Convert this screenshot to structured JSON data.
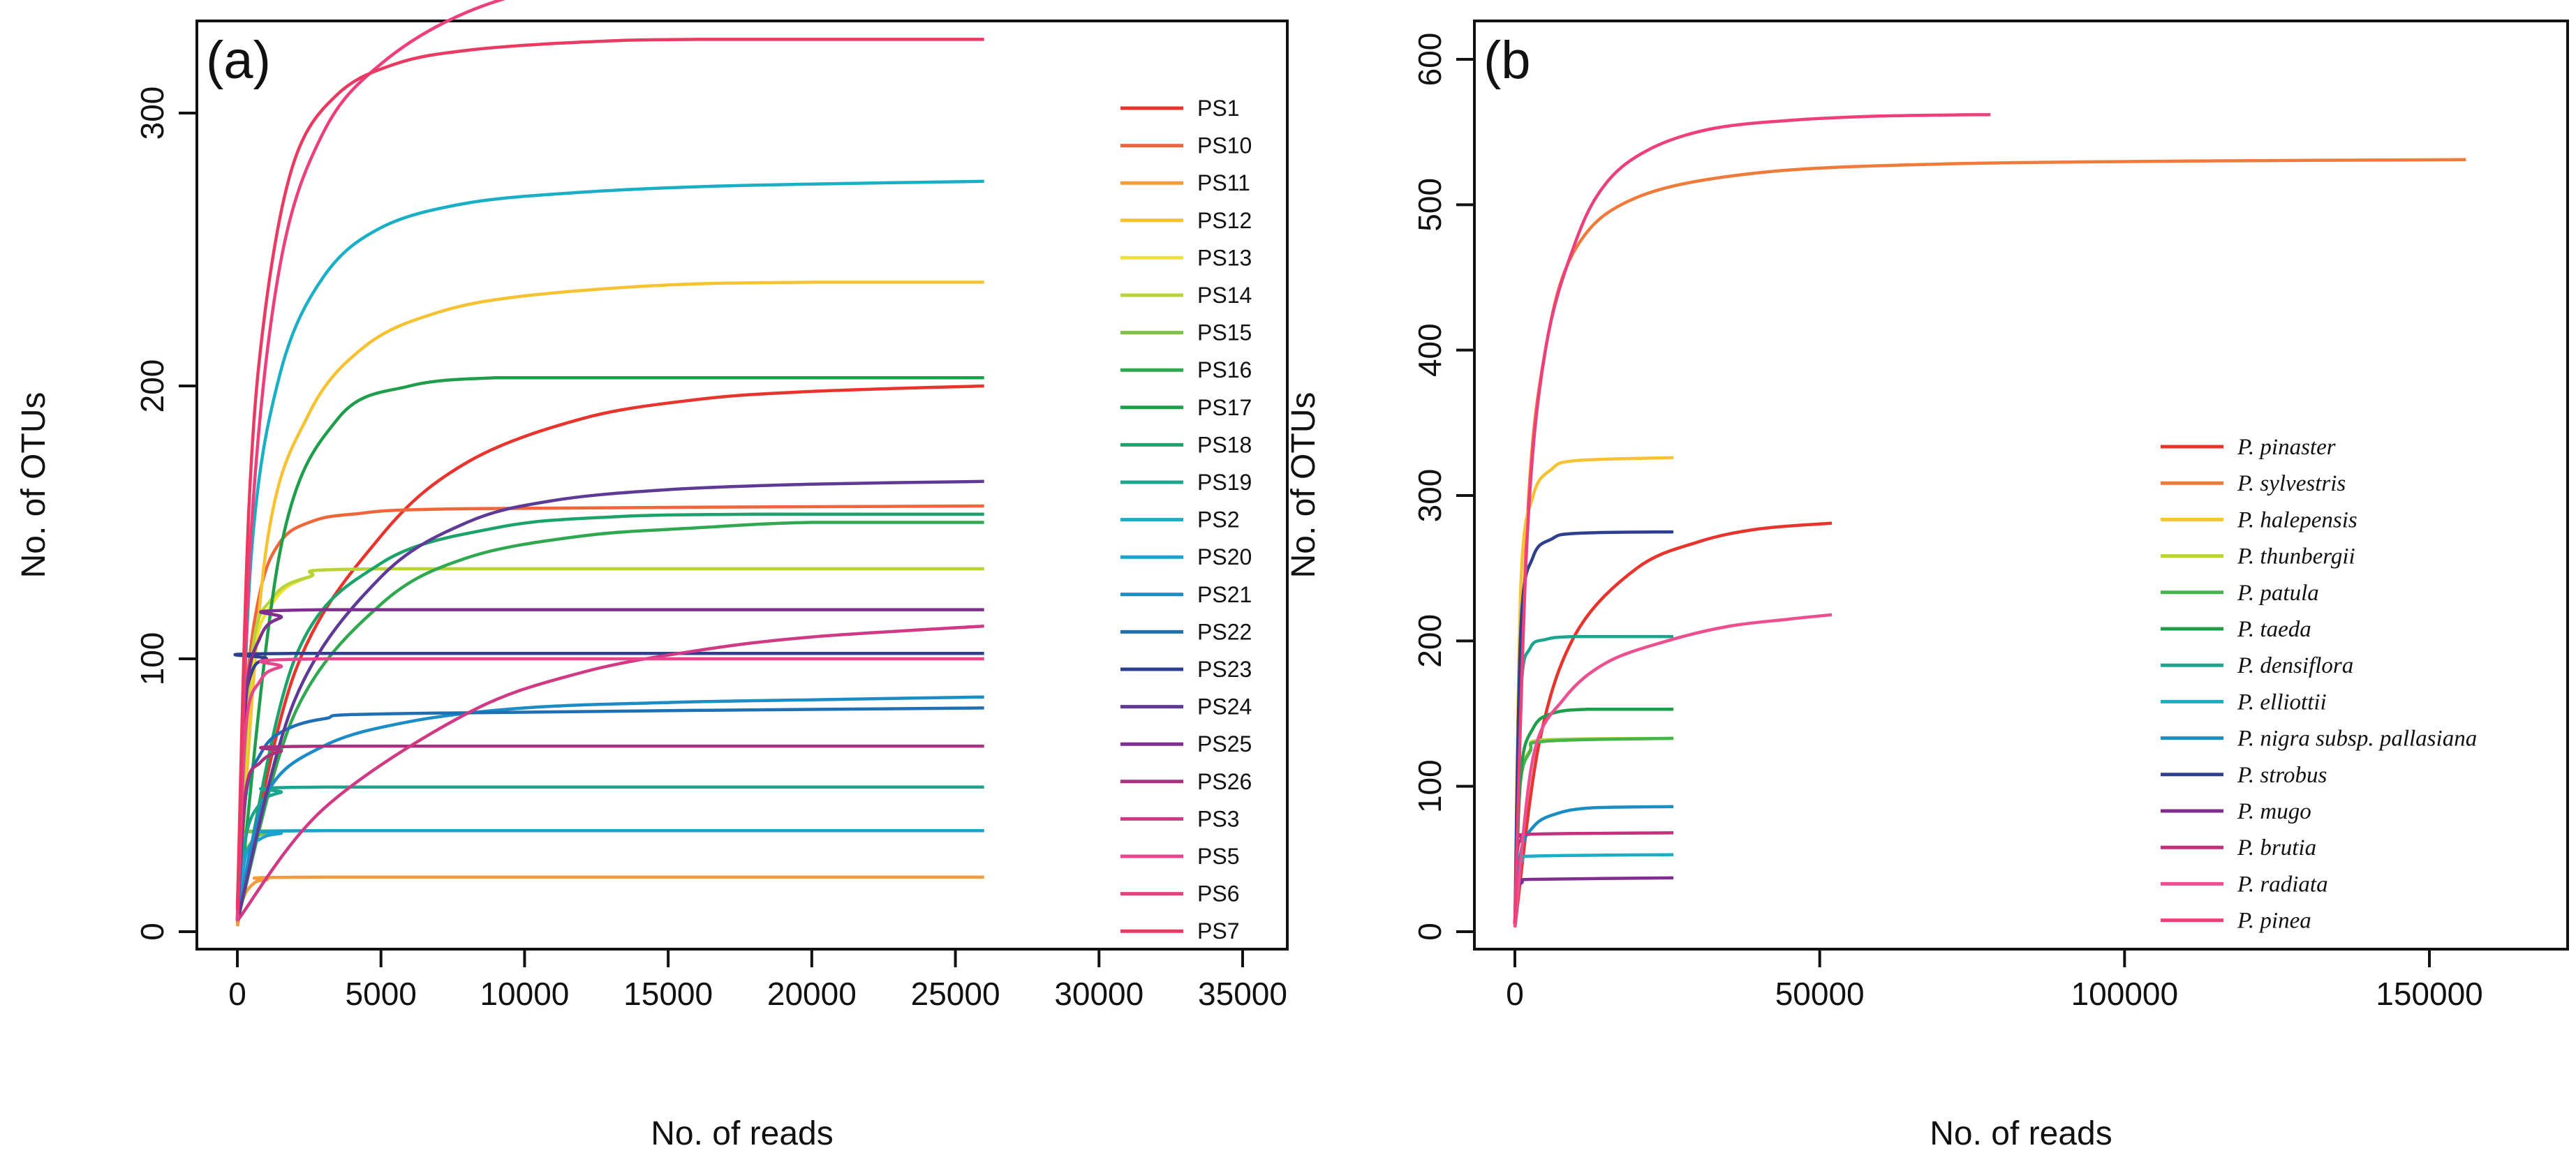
{
  "chart_data": [
    {
      "type": "line",
      "panel_label": "(a)",
      "xlabel": "No. of reads",
      "ylabel": "No. of OTUs",
      "xlim": [
        0,
        35000
      ],
      "ylim": [
        0,
        360
      ],
      "x_ticks": [
        0,
        5000,
        10000,
        15000,
        20000,
        25000,
        30000,
        35000
      ],
      "x_tick_labels": [
        "0",
        "5000",
        "10000",
        "15000",
        "20000",
        "25000",
        "30000",
        "35000"
      ],
      "y_ticks": [
        0,
        100,
        200,
        300
      ],
      "y_tick_labels": [
        "0",
        "100",
        "200",
        "300"
      ],
      "grid": false,
      "legend_position": "right",
      "series": [
        {
          "name": "PS1",
          "color": "#E8342C",
          "x": [
            0,
            2000,
            5000,
            8000,
            12000,
            16000,
            20000,
            26000
          ],
          "y": [
            3,
            95,
            145,
            172,
            188,
            195,
            198,
            200
          ]
        },
        {
          "name": "PS10",
          "color": "#F0653A",
          "x": [
            0,
            300,
            800,
            1500,
            2500,
            4000,
            8000,
            26000
          ],
          "y": [
            5,
            85,
            125,
            143,
            150,
            153,
            155,
            156
          ]
        },
        {
          "name": "PS11",
          "color": "#F39A3B",
          "x": [
            0,
            200,
            500,
            1000,
            3000,
            26000
          ],
          "y": [
            2,
            12,
            17,
            19,
            20,
            20
          ]
        },
        {
          "name": "PS12",
          "color": "#F6C232",
          "x": [
            0,
            1000,
            2500,
            4500,
            7000,
            10000,
            15000,
            20000,
            26000
          ],
          "y": [
            5,
            140,
            190,
            215,
            227,
            233,
            237,
            238,
            238
          ]
        },
        {
          "name": "PS13",
          "color": "#EEE42E",
          "x": [
            0,
            500,
            1200,
            2500,
            5000,
            26000
          ],
          "y": [
            5,
            95,
            120,
            130,
            133,
            133
          ]
        },
        {
          "name": "PS14",
          "color": "#B8D23A",
          "x": [
            0,
            500,
            1200,
            2500,
            5000,
            26000
          ],
          "y": [
            5,
            100,
            122,
            130,
            133,
            133
          ]
        },
        {
          "name": "PS15",
          "color": "#7CC244",
          "x": [
            0,
            200,
            500,
            1000,
            2500,
            26000
          ],
          "y": [
            4,
            25,
            33,
            36,
            37,
            37
          ]
        },
        {
          "name": "PS16",
          "color": "#2FA84F",
          "x": [
            0,
            2000,
            5000,
            8000,
            12000,
            16000,
            20000,
            26000
          ],
          "y": [
            4,
            80,
            120,
            137,
            145,
            148,
            150,
            150
          ]
        },
        {
          "name": "PS17",
          "color": "#1E9E4A",
          "x": [
            0,
            1500,
            3500,
            6000,
            9000,
            12000,
            26000
          ],
          "y": [
            4,
            140,
            188,
            200,
            203,
            203,
            203
          ]
        },
        {
          "name": "PS18",
          "color": "#1BA36A",
          "x": [
            0,
            2000,
            5000,
            9000,
            13000,
            18000,
            26000
          ],
          "y": [
            4,
            100,
            135,
            148,
            152,
            153,
            153
          ]
        },
        {
          "name": "PS19",
          "color": "#1CA58E",
          "x": [
            0,
            300,
            800,
            1500,
            3000,
            26000
          ],
          "y": [
            4,
            35,
            47,
            51,
            53,
            53
          ]
        },
        {
          "name": "PS2",
          "color": "#19AFC5",
          "x": [
            0,
            500,
            1500,
            3000,
            5000,
            8000,
            12000,
            16000,
            20000,
            26000
          ],
          "y": [
            10,
            140,
            205,
            240,
            258,
            267,
            271,
            273,
            274,
            275
          ]
        },
        {
          "name": "PS20",
          "color": "#1AA2D0",
          "x": [
            0,
            300,
            800,
            1500,
            3000,
            26000
          ],
          "y": [
            4,
            28,
            34,
            36,
            37,
            37
          ]
        },
        {
          "name": "PS21",
          "color": "#1C8CC6",
          "x": [
            0,
            1000,
            3000,
            6000,
            10000,
            15000,
            20000,
            26000
          ],
          "y": [
            4,
            50,
            68,
            77,
            82,
            84,
            85,
            86
          ]
        },
        {
          "name": "PS22",
          "color": "#1F6FB5",
          "x": [
            0,
            300,
            800,
            1500,
            3000,
            6000,
            26000
          ],
          "y": [
            4,
            50,
            65,
            73,
            78,
            80,
            82
          ]
        },
        {
          "name": "PS23",
          "color": "#2E3F8E",
          "x": [
            0,
            200,
            500,
            1000,
            2000,
            26000
          ],
          "y": [
            4,
            75,
            95,
            100,
            102,
            102
          ]
        },
        {
          "name": "PS24",
          "color": "#5E3A96",
          "x": [
            0,
            2000,
            5000,
            8000,
            11000,
            15000,
            20000,
            26000
          ],
          "y": [
            4,
            85,
            130,
            150,
            158,
            162,
            164,
            165
          ]
        },
        {
          "name": "PS25",
          "color": "#7E2F8E",
          "x": [
            0,
            300,
            800,
            1500,
            3000,
            26000
          ],
          "y": [
            4,
            85,
            108,
            115,
            118,
            118
          ]
        },
        {
          "name": "PS26",
          "color": "#A8307E",
          "x": [
            0,
            300,
            800,
            1500,
            3000,
            26000
          ],
          "y": [
            4,
            52,
            62,
            66,
            68,
            68
          ]
        },
        {
          "name": "PS3",
          "color": "#D03A84",
          "x": [
            0,
            3000,
            8000,
            12000,
            16000,
            20000,
            26000
          ],
          "y": [
            4,
            45,
            80,
            95,
            103,
            108,
            112
          ]
        },
        {
          "name": "PS5",
          "color": "#E8458F",
          "x": [
            0,
            300,
            800,
            1500,
            3000,
            26000
          ],
          "y": [
            4,
            75,
            92,
            97,
            100,
            100
          ]
        },
        {
          "name": "PS6",
          "color": "#EC3F7C",
          "x": [
            0,
            500,
            1500,
            3000,
            5000,
            8000,
            12000,
            16000,
            20000,
            26000
          ],
          "y": [
            6,
            150,
            245,
            293,
            318,
            337,
            349,
            354,
            356,
            357
          ]
        },
        {
          "name": "PS7",
          "color": "#E93A62",
          "x": [
            0,
            400,
            1000,
            2000,
            3500,
            5500,
            8000,
            12000,
            16000,
            26000
          ],
          "y": [
            8,
            155,
            230,
            283,
            307,
            318,
            323,
            326,
            327,
            327
          ]
        }
      ]
    },
    {
      "type": "line",
      "panel_label": "(b",
      "xlabel": "No. of reads",
      "ylabel": "No. of OTUs",
      "xlim": [
        0,
        175000
      ],
      "ylim": [
        0,
        600
      ],
      "x_ticks": [
        0,
        50000,
        100000,
        150000
      ],
      "x_tick_labels": [
        "0",
        "50000",
        "100000",
        "150000"
      ],
      "y_ticks": [
        0,
        100,
        200,
        300,
        400,
        500,
        600
      ],
      "y_tick_labels": [
        "0",
        "100",
        "200",
        "300",
        "400",
        "500",
        "600"
      ],
      "grid": false,
      "legend_position": "right",
      "series": [
        {
          "name": "P. pinaster",
          "color": "#E8342C",
          "x": [
            0,
            4000,
            10000,
            20000,
            30000,
            40000,
            52000
          ],
          "y": [
            3,
            130,
            205,
            250,
            268,
            277,
            281
          ]
        },
        {
          "name": "P. sylvestris",
          "color": "#F07A3A",
          "x": [
            0,
            2000,
            5000,
            10000,
            20000,
            40000,
            70000,
            110000,
            156000
          ],
          "y": [
            5,
            280,
            400,
            470,
            505,
            522,
            528,
            530,
            531
          ]
        },
        {
          "name": "P. halepensis",
          "color": "#F6C232",
          "x": [
            0,
            1000,
            3000,
            6000,
            10000,
            26000
          ],
          "y": [
            5,
            240,
            300,
            318,
            324,
            326
          ]
        },
        {
          "name": "P. thunbergii",
          "color": "#B8D23A",
          "x": [
            0,
            800,
            2500,
            5000,
            26000
          ],
          "y": [
            5,
            100,
            125,
            132,
            133
          ]
        },
        {
          "name": "P. patula",
          "color": "#44B54A",
          "x": [
            0,
            800,
            2500,
            5000,
            26000
          ],
          "y": [
            5,
            98,
            124,
            131,
            133
          ]
        },
        {
          "name": "P. taeda",
          "color": "#1E9E4A",
          "x": [
            0,
            1000,
            3000,
            6000,
            12000,
            26000
          ],
          "y": [
            5,
            110,
            140,
            150,
            153,
            153
          ]
        },
        {
          "name": "P. densiflora",
          "color": "#1CA58E",
          "x": [
            0,
            1000,
            2500,
            5000,
            10000,
            26000
          ],
          "y": [
            5,
            165,
            195,
            201,
            203,
            203
          ]
        },
        {
          "name": "P. elliottii",
          "color": "#19AFC5",
          "x": [
            0,
            400,
            1200,
            2500,
            26000
          ],
          "y": [
            5,
            40,
            49,
            52,
            53
          ]
        },
        {
          "name": "P. nigra subsp. pallasiana",
          "color": "#1C8CC6",
          "x": [
            0,
            1000,
            3000,
            6000,
            12000,
            26000
          ],
          "y": [
            5,
            55,
            72,
            80,
            85,
            86
          ]
        },
        {
          "name": "P. strobus",
          "color": "#2E3F8E",
          "x": [
            0,
            1000,
            3000,
            6000,
            10000,
            26000
          ],
          "y": [
            5,
            210,
            258,
            270,
            274,
            275
          ]
        },
        {
          "name": "P. mugo",
          "color": "#7E2F8E",
          "x": [
            0,
            400,
            1200,
            2500,
            26000
          ],
          "y": [
            5,
            28,
            34,
            36,
            37
          ]
        },
        {
          "name": "P. brutia",
          "color": "#C2307E",
          "x": [
            0,
            400,
            1200,
            2500,
            26000
          ],
          "y": [
            5,
            55,
            64,
            67,
            68
          ]
        },
        {
          "name": "P. radiata",
          "color": "#EC4F90",
          "x": [
            0,
            3000,
            8000,
            15000,
            25000,
            35000,
            45000,
            52000
          ],
          "y": [
            3,
            120,
            160,
            185,
            200,
            210,
            215,
            218
          ]
        },
        {
          "name": "P. pinea",
          "color": "#EC3F7C",
          "x": [
            0,
            2000,
            5000,
            10000,
            15000,
            22000,
            32000,
            45000,
            60000,
            78000
          ],
          "y": [
            6,
            270,
            400,
            475,
            515,
            538,
            552,
            558,
            561,
            562
          ]
        }
      ]
    }
  ]
}
